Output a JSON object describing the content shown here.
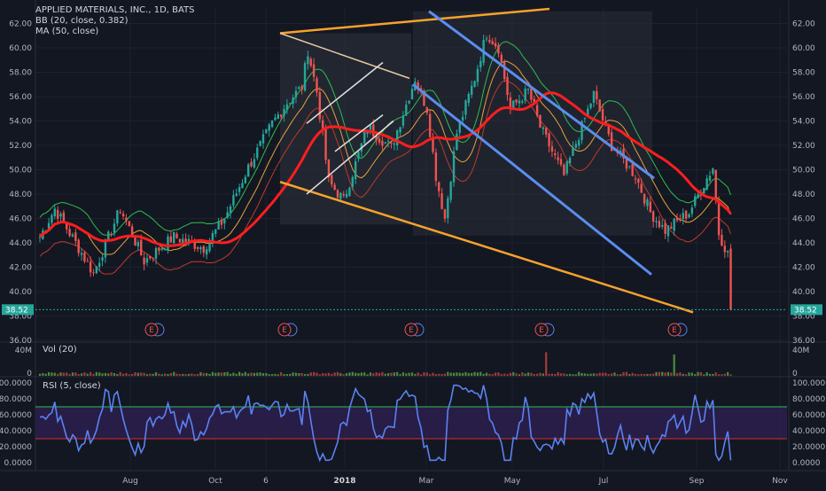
{
  "header": {
    "title": "APPLIED MATERIALS, INC., 1D, BATS",
    "bb": "BB (20, close, 0.382)",
    "ma": "MA (50, close)"
  },
  "price_axis": {
    "ticks": [
      "62.00",
      "60.00",
      "58.00",
      "56.00",
      "54.00",
      "52.00",
      "50.00",
      "48.00",
      "46.00",
      "44.00",
      "42.00",
      "40.00",
      "38.00",
      "36.00"
    ],
    "last_price": "38.52"
  },
  "volume_panel": {
    "label": "Vol (20)",
    "tick_top": "40M",
    "tick_bottom": "0"
  },
  "rsi_panel": {
    "label": "RSI (5, close)",
    "ticks": [
      "100.0000",
      "80.0000",
      "60.0000",
      "40.0000",
      "20.0000",
      "0.0000"
    ]
  },
  "x_axis": {
    "labels": [
      "Aug",
      "Oct",
      "6",
      "2018",
      "Mar",
      "May",
      "Jul",
      "Sep",
      "Nov"
    ]
  },
  "earnings_badge": "E",
  "colors": {
    "background": "#131722",
    "up": "#26a69a",
    "down": "#ef5350",
    "ma": "#ff1e1e",
    "channel_blue": "#5b8def",
    "wedge_orange": "#f7a22c",
    "rsi_line": "#5b82f0",
    "rsi_band": "#2c1f4d"
  },
  "chart_data": [
    {
      "type": "line",
      "title": "APPLIED MATERIALS, INC., 1D, BATS",
      "ylim": [
        36,
        63
      ],
      "x": [
        "Aug",
        "Oct",
        "6",
        "2018",
        "Mar",
        "May",
        "Jul",
        "Sep"
      ],
      "series": [
        {
          "name": "MA (50, close)",
          "values": [
            43.0,
            45.5,
            54.0,
            54.3,
            55.5,
            55.8,
            50.5,
            44.0
          ]
        },
        {
          "name": "close",
          "values": [
            42.0,
            50.5,
            56.5,
            51.5,
            61.0,
            55.0,
            46.5,
            38.52
          ]
        }
      ],
      "annotations": [
        "falling wedge trendlines",
        "descending channel",
        "earnings markers E"
      ]
    },
    {
      "type": "bar",
      "title": "Vol (20)",
      "ylim": [
        0,
        40
      ]
    },
    {
      "type": "line",
      "title": "RSI (5, close)",
      "ylim": [
        0,
        100
      ],
      "bands": [
        30,
        70
      ]
    }
  ]
}
